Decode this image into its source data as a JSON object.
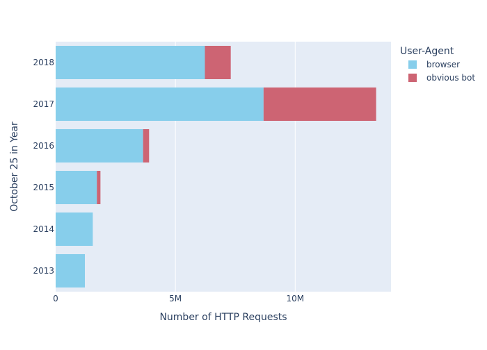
{
  "chart_data": {
    "type": "bar",
    "orientation": "horizontal",
    "barmode": "stack",
    "title": "",
    "xlabel": "Number of HTTP Requests",
    "ylabel": "October 25 in Year",
    "categories": [
      "2013",
      "2014",
      "2015",
      "2016",
      "2017",
      "2018"
    ],
    "xlim": [
      0,
      14000000
    ],
    "xticks": [
      {
        "value": 0,
        "label": "0"
      },
      {
        "value": 5000000,
        "label": "5M"
      },
      {
        "value": 10000000,
        "label": "10M"
      }
    ],
    "series": [
      {
        "name": "browser",
        "color": "#87CEEB",
        "values": [
          1220000,
          1550000,
          1720000,
          3650000,
          8680000,
          6230000
        ]
      },
      {
        "name": "obvious bot",
        "color": "#CD6473",
        "values": [
          0,
          0,
          150000,
          250000,
          4700000,
          1080000
        ]
      }
    ],
    "legend": {
      "title": "User-Agent",
      "placement": "top-right"
    },
    "grid": true,
    "colors": {
      "plot_background": "#E5ECF6",
      "gridline": "#ffffff",
      "text": "#2a3f5f"
    }
  }
}
